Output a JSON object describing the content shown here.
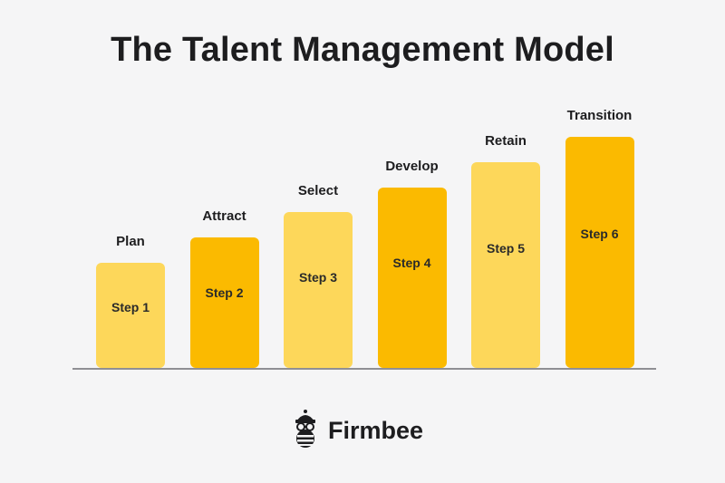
{
  "title": "The Talent Management Model",
  "steps": [
    {
      "label": "Plan",
      "step": "Step 1",
      "level": 1
    },
    {
      "label": "Attract",
      "step": "Step 2",
      "level": 2
    },
    {
      "label": "Select",
      "step": "Step 3",
      "level": 3
    },
    {
      "label": "Develop",
      "step": "Step 4",
      "level": 4
    },
    {
      "label": "Retain",
      "step": "Step 5",
      "level": 5
    },
    {
      "label": "Transition",
      "step": "Step 6",
      "level": 6
    }
  ],
  "colors": {
    "light": "#fdd75a",
    "dark": "#fbba00",
    "text": "#1d1d1f",
    "baseline": "#8f8f94"
  },
  "logo": {
    "text": "Firmbee",
    "icon": "bee-mascot-icon"
  }
}
